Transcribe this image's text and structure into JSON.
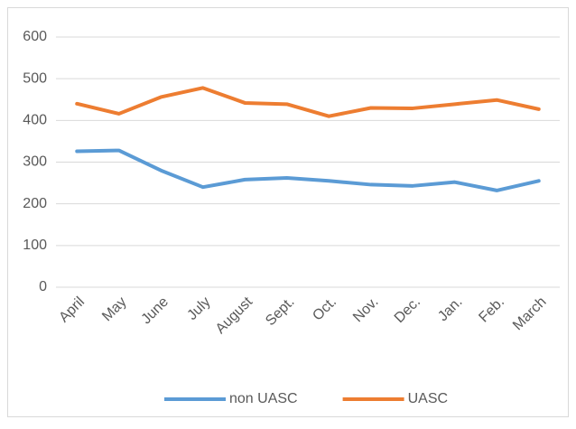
{
  "chart_data": {
    "type": "line",
    "categories": [
      "April",
      "May",
      "June",
      "July",
      "August",
      "Sept.",
      "Oct.",
      "Nov.",
      "Dec.",
      "Jan.",
      "Feb.",
      "March"
    ],
    "series": [
      {
        "name": "non UASC",
        "color": "#5b9bd5",
        "values": [
          326,
          328,
          280,
          240,
          258,
          262,
          255,
          246,
          243,
          252,
          232,
          255
        ]
      },
      {
        "name": "UASC",
        "color": "#ed7d31",
        "values": [
          440,
          416,
          456,
          478,
          442,
          439,
          410,
          430,
          429,
          439,
          449,
          427
        ]
      }
    ],
    "ylim": [
      0,
      600
    ],
    "yticks": [
      0,
      100,
      200,
      300,
      400,
      500,
      600
    ],
    "grid": true,
    "legend": "bottom"
  }
}
